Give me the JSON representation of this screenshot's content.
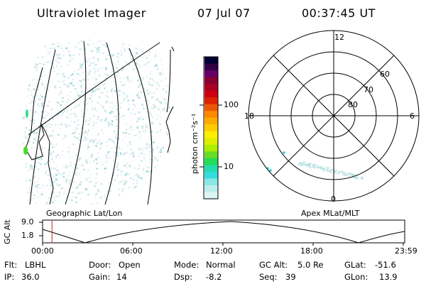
{
  "header": {
    "instrument": "Ultraviolet Imager",
    "date": "07 Jul 07",
    "time": "00:37:45 UT"
  },
  "colorbar": {
    "unit_label": "photon cm⁻²s⁻¹",
    "ticks": [
      "100",
      "10"
    ],
    "colors": [
      "#000033",
      "#330044",
      "#660066",
      "#880033",
      "#aa0022",
      "#cc0011",
      "#dd2200",
      "#ee5500",
      "#ff8800",
      "#ffaa00",
      "#ffcc00",
      "#ffee00",
      "#ddee00",
      "#aaee00",
      "#66dd22",
      "#22dd55",
      "#22ddaa",
      "#33dddd",
      "#88e6e6",
      "#bdeeee",
      "#ddf4f4"
    ]
  },
  "polar": {
    "mlt_labels": [
      "12",
      "18",
      "6",
      "0"
    ],
    "lat_labels": [
      "60",
      "70",
      "80"
    ]
  },
  "altitude_plot": {
    "ylabel": "GC Alt",
    "yticks": [
      "9.0",
      "1.8"
    ],
    "left_title": "Geographic Lat/Lon",
    "right_title": "Apex MLat/MLT",
    "xticks": [
      "00:00",
      "06:00",
      "12:00",
      "18:00",
      "23:59"
    ],
    "current_time_fraction": 0.026
  },
  "info": {
    "flt_label": "Flt:",
    "flt_value": "LBHL",
    "ip_label": "IP:",
    "ip_value": "36.0",
    "door_label": "Door:",
    "door_value": "Open",
    "gain_label": "Gain:",
    "gain_value": "14",
    "mode_label": "Mode:",
    "mode_value": "Normal",
    "dsp_label": "Dsp:",
    "dsp_value": "-8.2",
    "gcalt_label": "GC Alt:",
    "gcalt_value": "5.0 Re",
    "seq_label": "Seq:",
    "seq_value": "39",
    "glat_label": "GLat:",
    "glat_value": "-51.6",
    "glon_label": "GLon:",
    "glon_value": "13.9"
  }
}
